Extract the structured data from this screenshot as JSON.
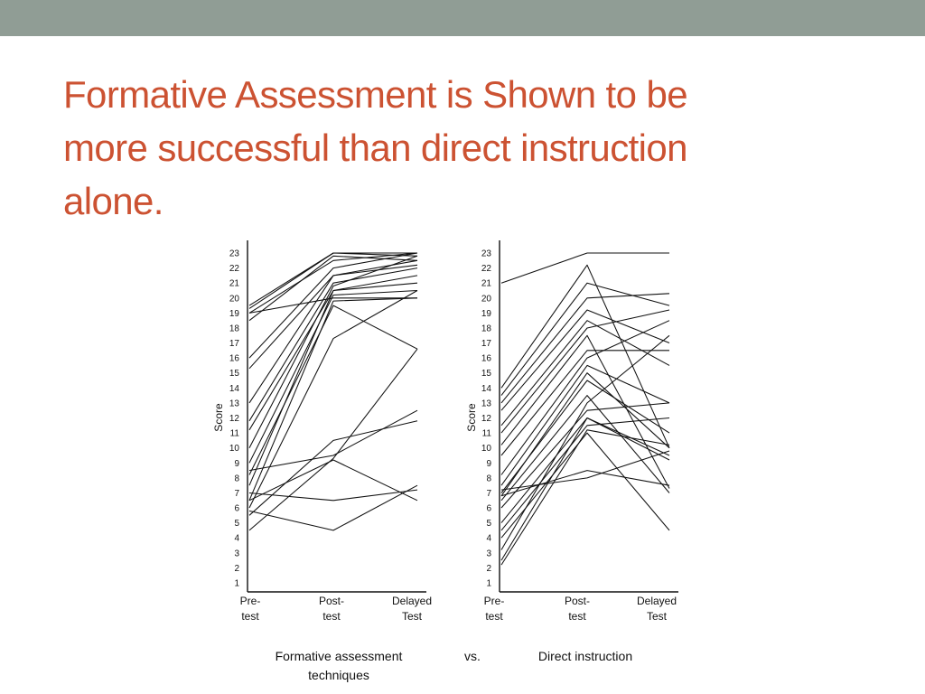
{
  "slide": {
    "title_lines": [
      "Formative Assessment is Shown to be",
      "more successful than direct instruction",
      "alone."
    ],
    "title_color": "#cc5232",
    "top_bar_color": "#909d95"
  },
  "caption": {
    "left_line1": "Formative assessment",
    "left_line2": "techniques",
    "vs": "vs.",
    "right": "Direct instruction"
  },
  "chart_data": [
    {
      "type": "line",
      "ylabel": "Score",
      "ylim": [
        1,
        23
      ],
      "yticks": [
        "23",
        "22",
        "21",
        "20",
        "19",
        "18",
        "17",
        "16",
        "15",
        "14",
        "13",
        "12",
        "11",
        "10",
        "9",
        "8",
        "7",
        "6",
        "5",
        "4",
        "3",
        "2",
        "1"
      ],
      "categories": [
        [
          "Pre-",
          "test"
        ],
        [
          "Post-",
          "test"
        ],
        [
          "Delayed",
          "Test"
        ]
      ],
      "series": [
        {
          "values": [
            19.5,
            23,
            23
          ]
        },
        {
          "values": [
            19.3,
            23,
            22.8
          ]
        },
        {
          "values": [
            19,
            22.5,
            23
          ]
        },
        {
          "values": [
            18.5,
            22.8,
            22.5
          ]
        },
        {
          "values": [
            16,
            22,
            23
          ]
        },
        {
          "values": [
            15.3,
            21.5,
            22.5
          ]
        },
        {
          "values": [
            13,
            21.5,
            22.2
          ]
        },
        {
          "values": [
            11.8,
            21,
            22
          ]
        },
        {
          "values": [
            11.2,
            20.5,
            21.5
          ]
        },
        {
          "values": [
            10,
            20.8,
            22.8
          ]
        },
        {
          "values": [
            9,
            20.2,
            20.5
          ]
        },
        {
          "values": [
            7.5,
            20.5,
            21
          ]
        },
        {
          "values": [
            6.5,
            19.8,
            20
          ]
        },
        {
          "values": [
            19,
            20,
            20
          ]
        },
        {
          "values": [
            8.2,
            19.5,
            16.6
          ]
        },
        {
          "values": [
            6,
            17.3,
            20.5
          ]
        },
        {
          "values": [
            4.5,
            9.3,
            16.6
          ]
        },
        {
          "values": [
            8.5,
            9.5,
            12.5
          ]
        },
        {
          "values": [
            5.5,
            10.5,
            11.8
          ]
        },
        {
          "values": [
            7,
            6.5,
            7.2
          ]
        },
        {
          "values": [
            5.8,
            4.5,
            7.5
          ]
        },
        {
          "values": [
            6.5,
            9.2,
            6.5
          ]
        }
      ]
    },
    {
      "type": "line",
      "ylabel": "Score",
      "ylim": [
        1,
        23
      ],
      "yticks": [
        "23",
        "22",
        "21",
        "20",
        "19",
        "18",
        "17",
        "16",
        "15",
        "14",
        "13",
        "12",
        "11",
        "10",
        "9",
        "8",
        "7",
        "6",
        "5",
        "4",
        "3",
        "2",
        "1"
      ],
      "categories": [
        [
          "Pre-",
          "test"
        ],
        [
          "Post-",
          "test"
        ],
        [
          "Delayed",
          "Test"
        ]
      ],
      "series": [
        {
          "values": [
            21,
            23,
            23
          ]
        },
        {
          "values": [
            14,
            22.2,
            10
          ]
        },
        {
          "values": [
            13.5,
            21,
            19.5
          ]
        },
        {
          "values": [
            13,
            20,
            20.3
          ]
        },
        {
          "values": [
            12.5,
            19.2,
            17
          ]
        },
        {
          "values": [
            11.5,
            18.5,
            15.5
          ]
        },
        {
          "values": [
            11,
            18,
            19.2
          ]
        },
        {
          "values": [
            10.2,
            17.5,
            7.3
          ]
        },
        {
          "values": [
            9.5,
            16.5,
            16.5
          ]
        },
        {
          "values": [
            8.2,
            16,
            18.5
          ]
        },
        {
          "values": [
            7.5,
            15.5,
            13
          ]
        },
        {
          "values": [
            6.8,
            15,
            10
          ]
        },
        {
          "values": [
            7,
            14.5,
            11
          ]
        },
        {
          "values": [
            6.5,
            13.5,
            7
          ]
        },
        {
          "values": [
            6,
            12.5,
            13
          ]
        },
        {
          "values": [
            5,
            12,
            9.5
          ]
        },
        {
          "values": [
            4.5,
            11.5,
            12
          ]
        },
        {
          "values": [
            4,
            11,
            4.5
          ]
        },
        {
          "values": [
            3.2,
            13,
            17.5
          ]
        },
        {
          "values": [
            2.5,
            12,
            9.2
          ]
        },
        {
          "values": [
            2.2,
            11.2,
            10.2
          ]
        },
        {
          "values": [
            7.2,
            8,
            9.8
          ]
        },
        {
          "values": [
            6.8,
            8.5,
            7.5
          ]
        }
      ]
    }
  ]
}
